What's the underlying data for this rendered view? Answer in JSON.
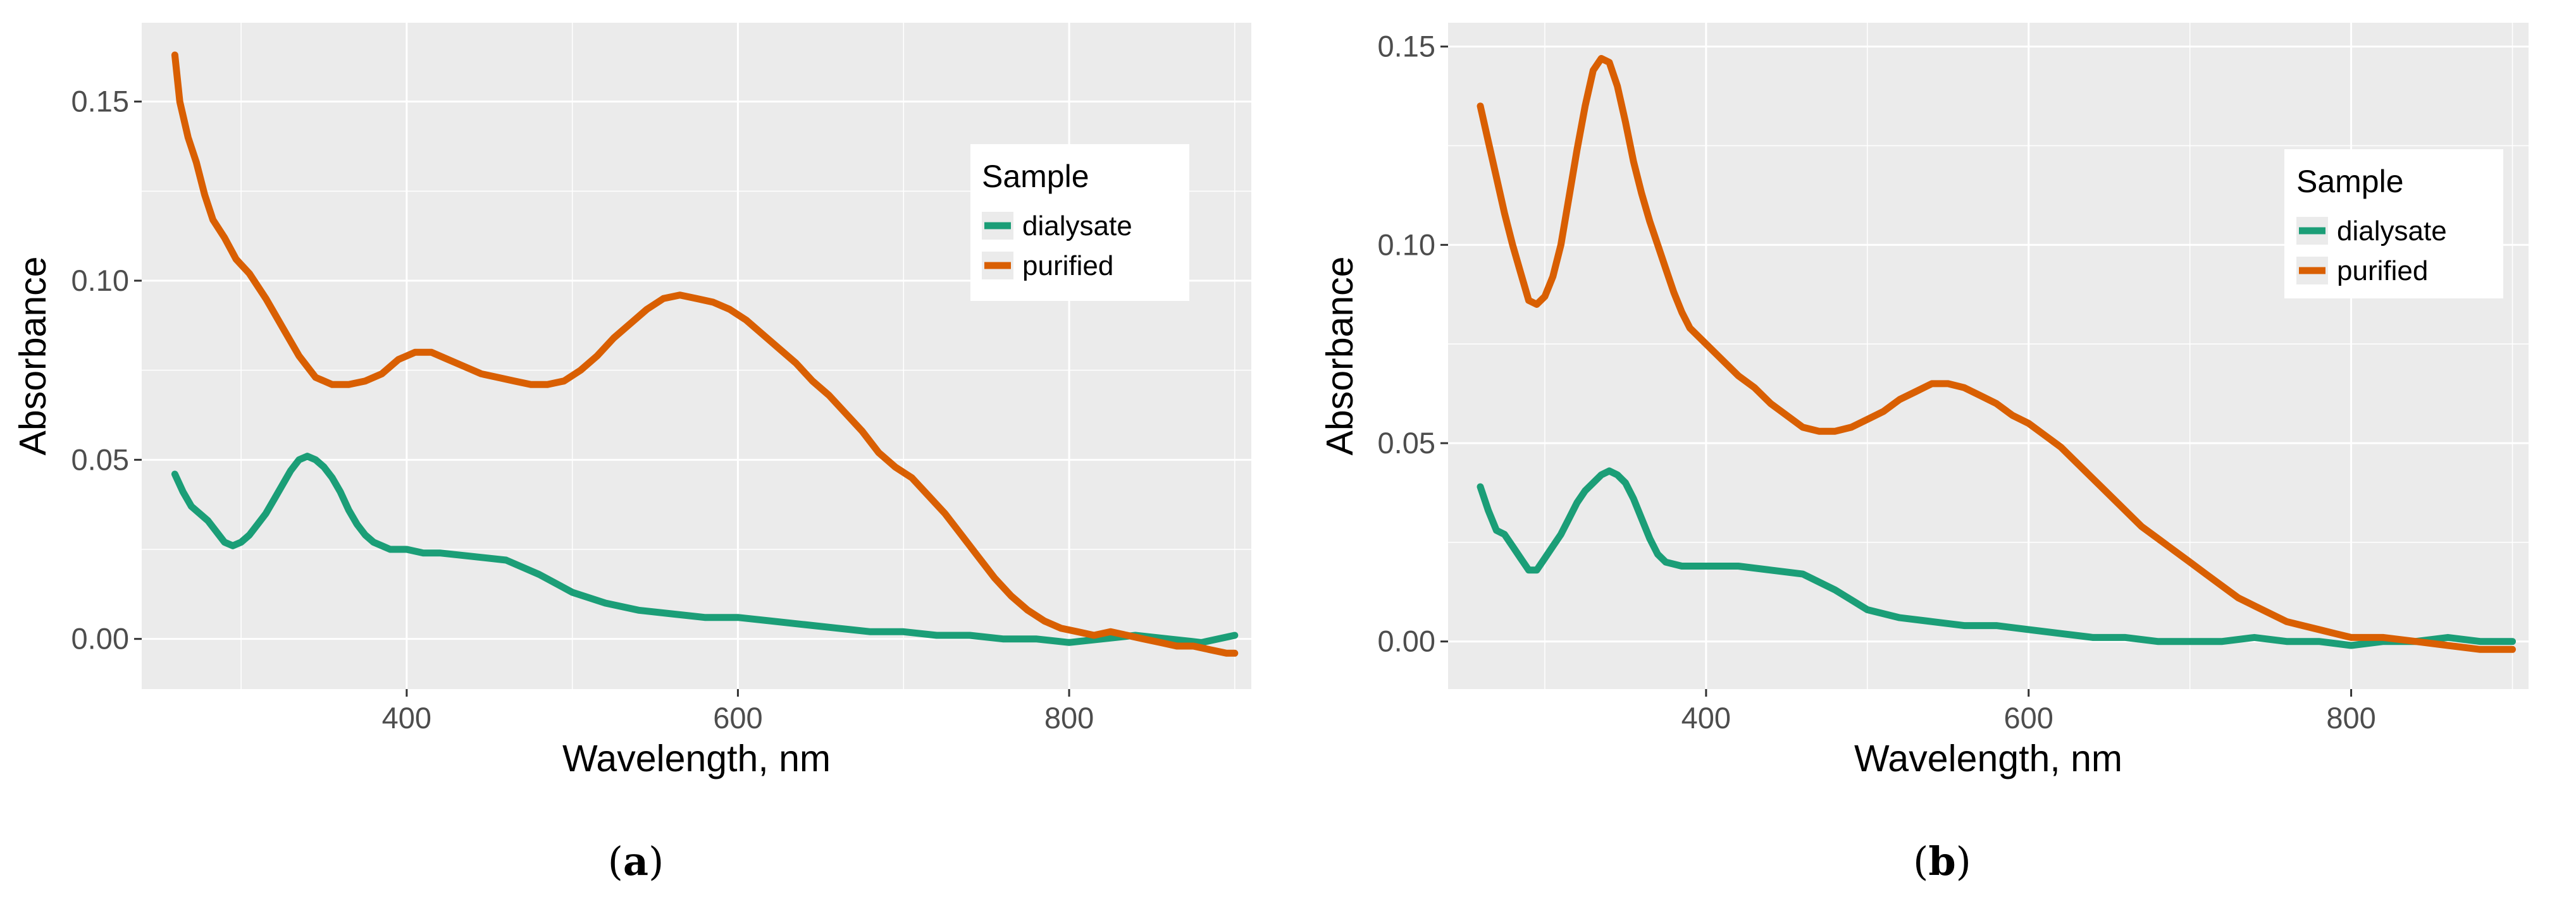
{
  "chart_data": [
    {
      "panel_label": "a",
      "type": "line",
      "xlabel": "Wavelength, nm",
      "ylabel": "Absorbance",
      "xlim": [
        240,
        910
      ],
      "ylim": [
        -0.014,
        0.172
      ],
      "xticks": [
        400,
        600,
        800
      ],
      "yticks": [
        0.0,
        0.05,
        0.1,
        0.15
      ],
      "ytick_labels": [
        "0.00",
        "0.05",
        "0.10",
        "0.15"
      ],
      "legend": {
        "title": "Sample",
        "position": "top-right"
      },
      "series": [
        {
          "name": "dialysate",
          "color": "#1b9e77",
          "points": [
            [
              260,
              0.046
            ],
            [
              265,
              0.041
            ],
            [
              270,
              0.037
            ],
            [
              275,
              0.035
            ],
            [
              280,
              0.033
            ],
            [
              285,
              0.03
            ],
            [
              290,
              0.027
            ],
            [
              295,
              0.026
            ],
            [
              300,
              0.027
            ],
            [
              305,
              0.029
            ],
            [
              310,
              0.032
            ],
            [
              315,
              0.035
            ],
            [
              320,
              0.039
            ],
            [
              325,
              0.043
            ],
            [
              330,
              0.047
            ],
            [
              335,
              0.05
            ],
            [
              340,
              0.051
            ],
            [
              345,
              0.05
            ],
            [
              350,
              0.048
            ],
            [
              355,
              0.045
            ],
            [
              360,
              0.041
            ],
            [
              365,
              0.036
            ],
            [
              370,
              0.032
            ],
            [
              375,
              0.029
            ],
            [
              380,
              0.027
            ],
            [
              385,
              0.026
            ],
            [
              390,
              0.025
            ],
            [
              400,
              0.025
            ],
            [
              410,
              0.024
            ],
            [
              420,
              0.024
            ],
            [
              440,
              0.023
            ],
            [
              460,
              0.022
            ],
            [
              480,
              0.018
            ],
            [
              500,
              0.013
            ],
            [
              520,
              0.01
            ],
            [
              540,
              0.008
            ],
            [
              560,
              0.007
            ],
            [
              580,
              0.006
            ],
            [
              600,
              0.006
            ],
            [
              620,
              0.005
            ],
            [
              640,
              0.004
            ],
            [
              660,
              0.003
            ],
            [
              680,
              0.002
            ],
            [
              700,
              0.002
            ],
            [
              720,
              0.001
            ],
            [
              740,
              0.001
            ],
            [
              760,
              0.0
            ],
            [
              780,
              0.0
            ],
            [
              800,
              -0.001
            ],
            [
              820,
              0.0
            ],
            [
              840,
              0.001
            ],
            [
              860,
              0.0
            ],
            [
              880,
              -0.001
            ],
            [
              900,
              0.001
            ]
          ]
        },
        {
          "name": "purified",
          "color": "#d95f02",
          "points": [
            [
              260,
              0.163
            ],
            [
              263,
              0.15
            ],
            [
              268,
              0.14
            ],
            [
              273,
              0.133
            ],
            [
              278,
              0.124
            ],
            [
              283,
              0.117
            ],
            [
              290,
              0.112
            ],
            [
              297,
              0.106
            ],
            [
              305,
              0.102
            ],
            [
              315,
              0.095
            ],
            [
              325,
              0.087
            ],
            [
              335,
              0.079
            ],
            [
              345,
              0.073
            ],
            [
              355,
              0.071
            ],
            [
              365,
              0.071
            ],
            [
              375,
              0.072
            ],
            [
              385,
              0.074
            ],
            [
              395,
              0.078
            ],
            [
              405,
              0.08
            ],
            [
              415,
              0.08
            ],
            [
              425,
              0.078
            ],
            [
              435,
              0.076
            ],
            [
              445,
              0.074
            ],
            [
              455,
              0.073
            ],
            [
              465,
              0.072
            ],
            [
              475,
              0.071
            ],
            [
              485,
              0.071
            ],
            [
              495,
              0.072
            ],
            [
              505,
              0.075
            ],
            [
              515,
              0.079
            ],
            [
              525,
              0.084
            ],
            [
              535,
              0.088
            ],
            [
              545,
              0.092
            ],
            [
              555,
              0.095
            ],
            [
              565,
              0.096
            ],
            [
              575,
              0.095
            ],
            [
              585,
              0.094
            ],
            [
              595,
              0.092
            ],
            [
              605,
              0.089
            ],
            [
              615,
              0.085
            ],
            [
              625,
              0.081
            ],
            [
              635,
              0.077
            ],
            [
              645,
              0.072
            ],
            [
              655,
              0.068
            ],
            [
              665,
              0.063
            ],
            [
              675,
              0.058
            ],
            [
              685,
              0.052
            ],
            [
              695,
              0.048
            ],
            [
              705,
              0.045
            ],
            [
              715,
              0.04
            ],
            [
              725,
              0.035
            ],
            [
              735,
              0.029
            ],
            [
              745,
              0.023
            ],
            [
              755,
              0.017
            ],
            [
              765,
              0.012
            ],
            [
              775,
              0.008
            ],
            [
              785,
              0.005
            ],
            [
              795,
              0.003
            ],
            [
              805,
              0.002
            ],
            [
              815,
              0.001
            ],
            [
              825,
              0.002
            ],
            [
              835,
              0.001
            ],
            [
              845,
              0.0
            ],
            [
              855,
              -0.001
            ],
            [
              865,
              -0.002
            ],
            [
              875,
              -0.002
            ],
            [
              885,
              -0.003
            ],
            [
              895,
              -0.004
            ],
            [
              900,
              -0.004
            ]
          ]
        }
      ]
    },
    {
      "panel_label": "b",
      "type": "line",
      "xlabel": "Wavelength, nm",
      "ylabel": "Absorbance",
      "xlim": [
        240,
        910
      ],
      "ylim": [
        -0.012,
        0.156
      ],
      "xticks": [
        400,
        600,
        800
      ],
      "yticks": [
        0.0,
        0.05,
        0.1,
        0.15
      ],
      "ytick_labels": [
        "0.00",
        "0.05",
        "0.10",
        "0.15"
      ],
      "legend": {
        "title": "Sample",
        "position": "top-right"
      },
      "series": [
        {
          "name": "dialysate",
          "color": "#1b9e77",
          "points": [
            [
              260,
              0.039
            ],
            [
              265,
              0.033
            ],
            [
              270,
              0.028
            ],
            [
              275,
              0.027
            ],
            [
              280,
              0.024
            ],
            [
              285,
              0.021
            ],
            [
              290,
              0.018
            ],
            [
              295,
              0.018
            ],
            [
              300,
              0.021
            ],
            [
              305,
              0.024
            ],
            [
              310,
              0.027
            ],
            [
              315,
              0.031
            ],
            [
              320,
              0.035
            ],
            [
              325,
              0.038
            ],
            [
              330,
              0.04
            ],
            [
              335,
              0.042
            ],
            [
              340,
              0.043
            ],
            [
              345,
              0.042
            ],
            [
              350,
              0.04
            ],
            [
              355,
              0.036
            ],
            [
              360,
              0.031
            ],
            [
              365,
              0.026
            ],
            [
              370,
              0.022
            ],
            [
              375,
              0.02
            ],
            [
              385,
              0.019
            ],
            [
              400,
              0.019
            ],
            [
              420,
              0.019
            ],
            [
              440,
              0.018
            ],
            [
              460,
              0.017
            ],
            [
              480,
              0.013
            ],
            [
              500,
              0.008
            ],
            [
              520,
              0.006
            ],
            [
              540,
              0.005
            ],
            [
              560,
              0.004
            ],
            [
              580,
              0.004
            ],
            [
              600,
              0.003
            ],
            [
              620,
              0.002
            ],
            [
              640,
              0.001
            ],
            [
              660,
              0.001
            ],
            [
              680,
              0.0
            ],
            [
              700,
              0.0
            ],
            [
              720,
              0.0
            ],
            [
              740,
              0.001
            ],
            [
              760,
              0.0
            ],
            [
              780,
              0.0
            ],
            [
              800,
              -0.001
            ],
            [
              820,
              0.0
            ],
            [
              840,
              0.0
            ],
            [
              860,
              0.001
            ],
            [
              880,
              0.0
            ],
            [
              900,
              0.0
            ]
          ]
        },
        {
          "name": "purified",
          "color": "#d95f02",
          "points": [
            [
              260,
              0.135
            ],
            [
              265,
              0.126
            ],
            [
              270,
              0.117
            ],
            [
              275,
              0.108
            ],
            [
              280,
              0.1
            ],
            [
              285,
              0.093
            ],
            [
              290,
              0.086
            ],
            [
              295,
              0.085
            ],
            [
              300,
              0.087
            ],
            [
              305,
              0.092
            ],
            [
              310,
              0.1
            ],
            [
              315,
              0.112
            ],
            [
              320,
              0.124
            ],
            [
              325,
              0.135
            ],
            [
              330,
              0.144
            ],
            [
              335,
              0.147
            ],
            [
              340,
              0.146
            ],
            [
              345,
              0.14
            ],
            [
              350,
              0.131
            ],
            [
              355,
              0.121
            ],
            [
              360,
              0.113
            ],
            [
              365,
              0.106
            ],
            [
              370,
              0.1
            ],
            [
              375,
              0.094
            ],
            [
              380,
              0.088
            ],
            [
              385,
              0.083
            ],
            [
              390,
              0.079
            ],
            [
              400,
              0.075
            ],
            [
              410,
              0.071
            ],
            [
              420,
              0.067
            ],
            [
              430,
              0.064
            ],
            [
              440,
              0.06
            ],
            [
              450,
              0.057
            ],
            [
              460,
              0.054
            ],
            [
              470,
              0.053
            ],
            [
              480,
              0.053
            ],
            [
              490,
              0.054
            ],
            [
              500,
              0.056
            ],
            [
              510,
              0.058
            ],
            [
              520,
              0.061
            ],
            [
              530,
              0.063
            ],
            [
              540,
              0.065
            ],
            [
              550,
              0.065
            ],
            [
              560,
              0.064
            ],
            [
              570,
              0.062
            ],
            [
              580,
              0.06
            ],
            [
              590,
              0.057
            ],
            [
              600,
              0.055
            ],
            [
              610,
              0.052
            ],
            [
              620,
              0.049
            ],
            [
              630,
              0.045
            ],
            [
              640,
              0.041
            ],
            [
              650,
              0.037
            ],
            [
              660,
              0.033
            ],
            [
              670,
              0.029
            ],
            [
              680,
              0.026
            ],
            [
              690,
              0.023
            ],
            [
              700,
              0.02
            ],
            [
              710,
              0.017
            ],
            [
              720,
              0.014
            ],
            [
              730,
              0.011
            ],
            [
              740,
              0.009
            ],
            [
              750,
              0.007
            ],
            [
              760,
              0.005
            ],
            [
              770,
              0.004
            ],
            [
              780,
              0.003
            ],
            [
              790,
              0.002
            ],
            [
              800,
              0.001
            ],
            [
              820,
              0.001
            ],
            [
              840,
              0.0
            ],
            [
              860,
              -0.001
            ],
            [
              880,
              -0.002
            ],
            [
              900,
              -0.002
            ]
          ]
        }
      ]
    }
  ]
}
